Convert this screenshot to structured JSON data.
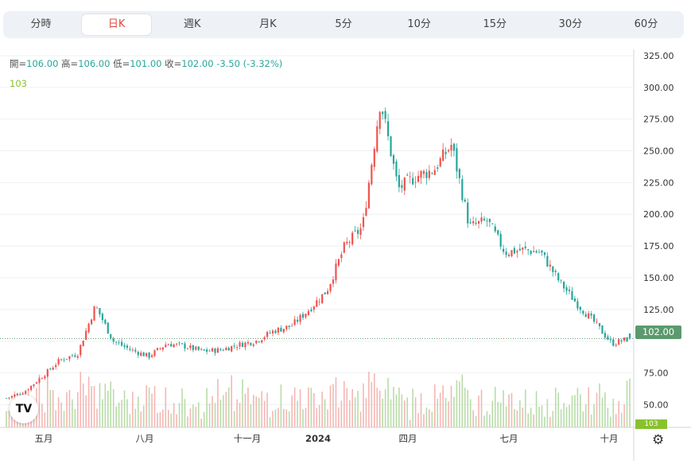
{
  "tabs": [
    {
      "label": "分時",
      "active": false
    },
    {
      "label": "日K",
      "active": true
    },
    {
      "label": "週K",
      "active": false
    },
    {
      "label": "月K",
      "active": false
    },
    {
      "label": "5分",
      "active": false
    },
    {
      "label": "10分",
      "active": false
    },
    {
      "label": "15分",
      "active": false
    },
    {
      "label": "30分",
      "active": false
    },
    {
      "label": "60分",
      "active": false
    }
  ],
  "legend": {
    "open_label": "開=",
    "open": "106.00",
    "high_label": "高=",
    "high": "106.00",
    "low_label": "低=",
    "low": "101.00",
    "close_label": "收=",
    "close": "102.00",
    "change": "-3.50",
    "change_pct": "(-3.32%)",
    "volume": "103"
  },
  "price_tag": "102.00",
  "volume_tag": "103",
  "logo_text": "TV",
  "settings_icon": "gear-icon",
  "colors": {
    "up": "#ef5350",
    "down": "#26a69a",
    "price_tag": "#5a9a6e",
    "volume_tag": "#89c12f",
    "active_tab": "#e0473e"
  },
  "chart_data": {
    "type": "candlestick",
    "y_ticks": [
      325,
      300,
      275,
      250,
      225,
      200,
      175,
      150,
      125,
      100,
      75,
      50
    ],
    "y_tick_labels": [
      "325.00",
      "300.00",
      "275.00",
      "250.00",
      "225.00",
      "200.00",
      "175.00",
      "150.00",
      "125.00",
      "75.00",
      "50.00"
    ],
    "ylim": [
      32,
      330
    ],
    "x_labels": [
      "五月",
      "八月",
      "十一月",
      "2024",
      "四月",
      "七月",
      "十月"
    ],
    "last_price": 102.0,
    "close_path": [
      [
        "2023-04",
        55
      ],
      [
        "2023-05",
        60
      ],
      [
        "2023-05-20",
        72
      ],
      [
        "2023-06",
        85
      ],
      [
        "2023-06-20",
        90
      ],
      [
        "2023-07-10",
        128
      ],
      [
        "2023-07-20",
        100
      ],
      [
        "2023-08",
        93
      ],
      [
        "2023-08-20",
        88
      ],
      [
        "2023-09",
        98
      ],
      [
        "2023-09-20",
        96
      ],
      [
        "2023-10",
        92
      ],
      [
        "2023-10-20",
        93
      ],
      [
        "2023-11",
        97
      ],
      [
        "2023-12",
        100
      ],
      [
        "2023-12-20",
        108
      ],
      [
        "2024-01",
        112
      ],
      [
        "2024-02",
        125
      ],
      [
        "2024-02-20",
        140
      ],
      [
        "2024-03",
        175
      ],
      [
        "2024-03-20",
        190
      ],
      [
        "2024-04",
        290
      ],
      [
        "2024-04-10",
        220
      ],
      [
        "2024-04-25",
        230
      ],
      [
        "2024-05",
        235
      ],
      [
        "2024-05-20",
        255
      ],
      [
        "2024-06",
        190
      ],
      [
        "2024-06-20",
        195
      ],
      [
        "2024-07",
        170
      ],
      [
        "2024-07-20",
        172
      ],
      [
        "2024-08",
        170
      ],
      [
        "2024-08-20",
        148
      ],
      [
        "2024-09",
        130
      ],
      [
        "2024-09-20",
        115
      ],
      [
        "2024-10",
        98
      ],
      [
        "2024-10-10",
        102
      ]
    ]
  }
}
